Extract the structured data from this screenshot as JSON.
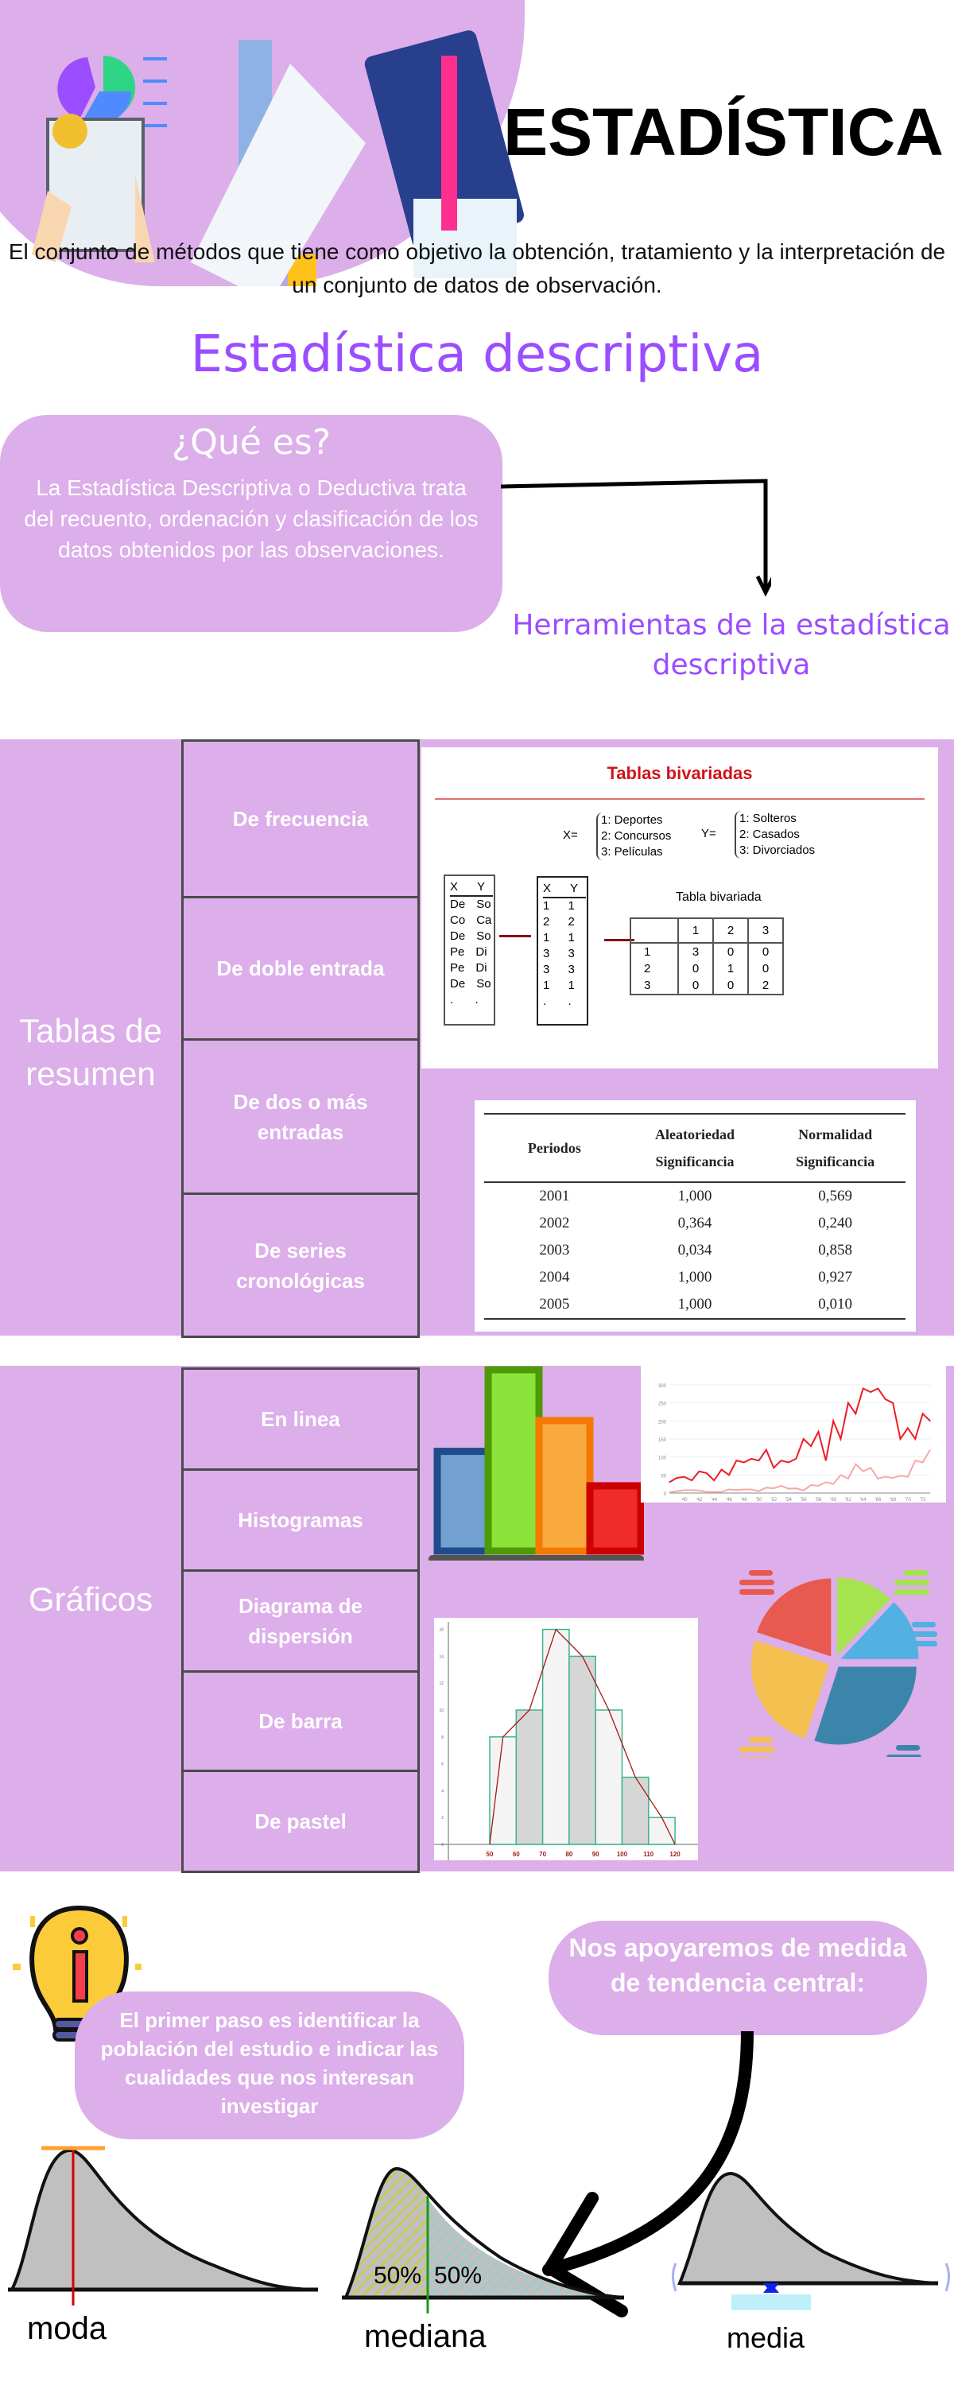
{
  "header": {
    "title": "ESTADÍSTICA",
    "description": "El conjunto de métodos que tiene como objetivo la obtención, tratamiento y la interpretación de un conjunto de datos de observación.",
    "subtitle": "Estadística descriptiva"
  },
  "que_es": {
    "heading": "¿Qué es?",
    "text": "La Estadística Descriptiva o Deductiva trata del recuento, ordenación y clasificación de los datos obtenidos por las observaciones."
  },
  "herramientas": "Herramientas de la estadística descriptiva",
  "tablas": {
    "label": "Tablas de resumen",
    "items": [
      "De frecuencia",
      "De doble entrada",
      "De dos o más entradas",
      "De series cronológicas"
    ],
    "bivariada": {
      "title": "Tablas bivariadas",
      "x_def": [
        "1: Deportes",
        "2: Concursos",
        "3: Películas"
      ],
      "y_def": [
        "1: Solteros",
        "2: Casados",
        "3: Divorciados"
      ],
      "x_label": "X=",
      "y_label": "Y=",
      "raw_header": [
        "X",
        "Y"
      ],
      "raw_rows": [
        [
          "De",
          "So"
        ],
        [
          "Co",
          "Ca"
        ],
        [
          "De",
          "So"
        ],
        [
          "Pe",
          "Di"
        ],
        [
          "Pe",
          "Di"
        ],
        [
          "De",
          "So"
        ],
        [
          ".",
          "."
        ]
      ],
      "coded_rows": [
        [
          "1",
          "1"
        ],
        [
          "2",
          "2"
        ],
        [
          "1",
          "1"
        ],
        [
          "3",
          "3"
        ],
        [
          "3",
          "3"
        ],
        [
          "1",
          "1"
        ],
        [
          ".",
          "."
        ]
      ],
      "table_title": "Tabla bivariada",
      "table_cols": [
        "",
        "1",
        "2",
        "3"
      ],
      "table_rows": [
        [
          "1",
          "3",
          "0",
          "0"
        ],
        [
          "2",
          "0",
          "1",
          "0"
        ],
        [
          "3",
          "0",
          "0",
          "2"
        ]
      ]
    },
    "cronologica": {
      "headers": [
        "Periodos",
        "Aleatoriedad Significancia",
        "Normalidad Significancia"
      ],
      "rows": [
        [
          "2001",
          "1,000",
          "0,569"
        ],
        [
          "2002",
          "0,364",
          "0,240"
        ],
        [
          "2003",
          "0,034",
          "0,858"
        ],
        [
          "2004",
          "1,000",
          "0,927"
        ],
        [
          "2005",
          "1,000",
          "0,010"
        ]
      ]
    }
  },
  "graficos": {
    "label": "Gráficos",
    "items": [
      "En linea",
      "Histogramas",
      "Diagrama de dispersión",
      "De barra",
      "De pastel"
    ],
    "bar_icon_colors": [
      "#72a0d0",
      "#8be33a",
      "#f9aa3f",
      "#ef2b2b"
    ],
    "bar_icon_levels": [
      0.55,
      1.0,
      0.72,
      0.36
    ],
    "pie_icon": {
      "colors": [
        "#e85a4f",
        "#a6e34e",
        "#52b0e3",
        "#3b85ab",
        "#f4c050"
      ],
      "shares": [
        20,
        12,
        13,
        30,
        25
      ]
    }
  },
  "chart_data": [
    {
      "type": "line",
      "x": [
        "'38",
        "'39",
        "'40",
        "'41",
        "'42",
        "'43",
        "'44",
        "'45",
        "'46",
        "'47",
        "'48",
        "'49",
        "'50",
        "'51",
        "'52",
        "'53",
        "'54",
        "'55",
        "'56",
        "'57",
        "'58",
        "'59",
        "'60",
        "'61",
        "'62",
        "'63",
        "'64",
        "'65",
        "'66",
        "'67",
        "'68",
        "'69",
        "'70",
        "'71",
        "'72",
        "'73"
      ],
      "x_tick_labels": [
        "'40",
        "'42",
        "'44",
        "'46",
        "'48",
        "'50",
        "'52",
        "'54",
        "'56",
        "'58",
        "'60",
        "'62",
        "'64",
        "'66",
        "'68",
        "'70",
        "'72"
      ],
      "series": [
        {
          "color": "#ee1c25",
          "values": [
            30,
            42,
            45,
            35,
            60,
            55,
            35,
            65,
            50,
            90,
            85,
            95,
            90,
            120,
            70,
            90,
            85,
            95,
            150,
            130,
            170,
            90,
            200,
            150,
            250,
            220,
            290,
            280,
            290,
            260,
            250,
            150,
            180,
            150,
            220,
            200
          ]
        },
        {
          "color": "#f7a8a8",
          "values": [
            2,
            5,
            8,
            8,
            7,
            3,
            3,
            3,
            10,
            8,
            10,
            10,
            5,
            15,
            13,
            20,
            12,
            13,
            7,
            22,
            20,
            30,
            25,
            50,
            40,
            80,
            60,
            70,
            40,
            45,
            42,
            48,
            45,
            90,
            85,
            120
          ]
        }
      ],
      "y_ticks": [
        0,
        50,
        100,
        150,
        200,
        250,
        300
      ],
      "ylim": [
        0,
        300
      ],
      "grid": true
    },
    {
      "type": "bar",
      "bins": [
        [
          50,
          60
        ],
        [
          60,
          70
        ],
        [
          70,
          80
        ],
        [
          80,
          90
        ],
        [
          90,
          100
        ],
        [
          100,
          110
        ],
        [
          110,
          120
        ]
      ],
      "values": [
        8,
        10,
        16,
        14,
        10,
        5,
        2
      ],
      "x_ticks": [
        50,
        60,
        70,
        80,
        90,
        100,
        110,
        120
      ],
      "y_ticks": [
        0,
        2,
        4,
        6,
        8,
        10,
        12,
        14,
        16
      ],
      "ylim": [
        0,
        16
      ],
      "frequency_polygon": true
    }
  ],
  "bottom": {
    "note": "El primer paso es identificar la población del estudio  e indicar las  cualidades que nos interesan investigar",
    "tendencia": "Nos apoyaremos de medida de tendencia central:",
    "moda": "moda",
    "mediana": "mediana",
    "media": "media",
    "pct_left": "50%",
    "pct_right": "50%"
  },
  "colors": {
    "lilac": "#dcaeea",
    "purple_text": "#9b4dff",
    "cell_border": "#4a4a4a"
  }
}
